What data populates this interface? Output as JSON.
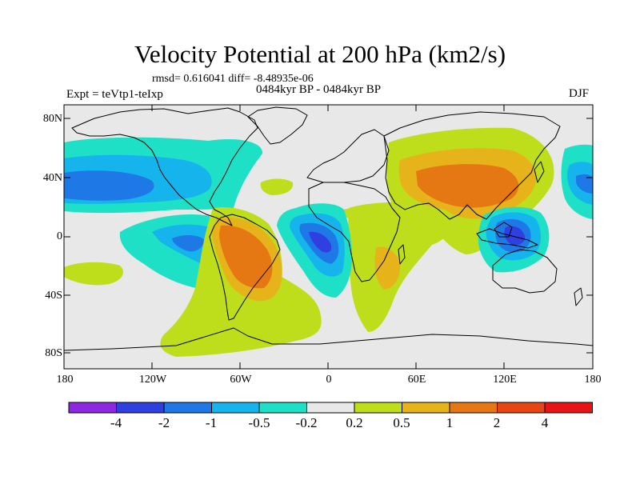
{
  "title": "Velocity Potential at 200 hPa (km2/s)",
  "stats": "rmsd= 0.616041 diff= -8.48935e-06",
  "experiment": "Expt = teVtp1-teIxp",
  "period": "0484kyr BP - 0484kyr BP",
  "season": "DJF",
  "units": "km2/s",
  "lat_labels": [
    "80N",
    "40N",
    "0",
    "40S",
    "80S"
  ],
  "lon_labels": [
    "180",
    "120W",
    "60W",
    "0",
    "60E",
    "120E",
    "180"
  ],
  "colorbar": {
    "labels": [
      "-4",
      "-2",
      "-1",
      "-0.5",
      "-0.2",
      "0.2",
      "0.5",
      "1",
      "2",
      "4"
    ],
    "colors": [
      "#8c28e0",
      "#2f3fe0",
      "#1e78e6",
      "#16b4ec",
      "#1ee0c6",
      "#e8e8e8",
      "#bedd1a",
      "#e6b41a",
      "#e67814",
      "#e64614",
      "#e61414"
    ]
  },
  "background_color": "#e8e8e8",
  "fields": [
    {
      "name": "west-pacific-negative-band",
      "colors": [
        "#1ee0c6",
        "#16b4ec",
        "#1e78e6"
      ]
    },
    {
      "name": "east-pacific-negative",
      "colors": [
        "#1ee0c6",
        "#16b4ec",
        "#1e78e6"
      ]
    },
    {
      "name": "south-pacific-positive",
      "colors": [
        "#bedd1a"
      ]
    },
    {
      "name": "south-america-positive",
      "colors": [
        "#bedd1a",
        "#e6b41a",
        "#e67814"
      ]
    },
    {
      "name": "atlantic-africa-negative",
      "colors": [
        "#1ee0c6",
        "#16b4ec",
        "#1e78e6",
        "#2f3fe0"
      ]
    },
    {
      "name": "africa-indian-positive",
      "colors": [
        "#bedd1a",
        "#e6b41a"
      ]
    },
    {
      "name": "asia-positive",
      "colors": [
        "#bedd1a",
        "#e6b41a",
        "#e67814"
      ]
    },
    {
      "name": "maritime-continent-negative",
      "colors": [
        "#1ee0c6",
        "#16b4ec",
        "#1e78e6",
        "#2f3fe0"
      ]
    },
    {
      "name": "dateline-negative",
      "colors": [
        "#1ee0c6",
        "#16b4ec",
        "#1e78e6"
      ]
    }
  ]
}
